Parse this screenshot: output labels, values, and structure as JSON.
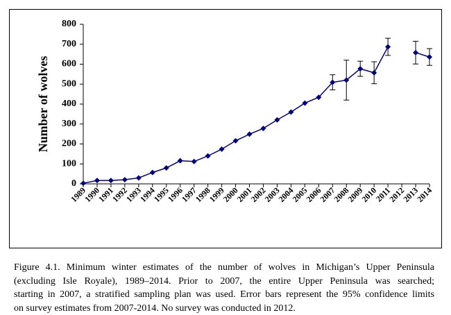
{
  "chart_data": {
    "type": "line",
    "y_label": "Number of wolves",
    "categories": [
      "1989",
      "1990",
      "1991",
      "1992",
      "1993",
      "1994",
      "1995",
      "1996",
      "1997",
      "1998",
      "1999",
      "2000",
      "2001",
      "2002",
      "2003",
      "2004",
      "2005",
      "2006",
      "2007",
      "2008",
      "2009",
      "2010",
      "2011",
      "2012",
      "2013",
      "2014"
    ],
    "series": [
      {
        "color": "#000080",
        "values": [
          3,
          17,
          17,
          21,
          30,
          57,
          80,
          116,
          112,
          140,
          174,
          216,
          249,
          278,
          321,
          360,
          405,
          434,
          509,
          520,
          577,
          557,
          687,
          null,
          658,
          636
        ],
        "errors": [
          null,
          null,
          null,
          null,
          null,
          null,
          null,
          null,
          null,
          null,
          null,
          null,
          null,
          null,
          null,
          null,
          null,
          null,
          38,
          100,
          38,
          55,
          43,
          null,
          57,
          42
        ]
      }
    ],
    "ylim": [
      0,
      800
    ],
    "yticks": [
      0,
      100,
      200,
      300,
      400,
      500,
      600,
      700,
      800
    ],
    "grid": false
  },
  "caption": [
    "Figure 4.1.  Minimum winter estimates of the number of wolves in Michigan’s Upper Peninsula",
    "(excluding Isle Royale), 1989–2014.  Prior to 2007, the entire Upper Peninsula was searched;",
    "starting in 2007, a stratified sampling plan was used.  Error bars represent the 95% confidence limits",
    "on survey estimates from 2007-2014.  No survey was conducted in 2012."
  ]
}
